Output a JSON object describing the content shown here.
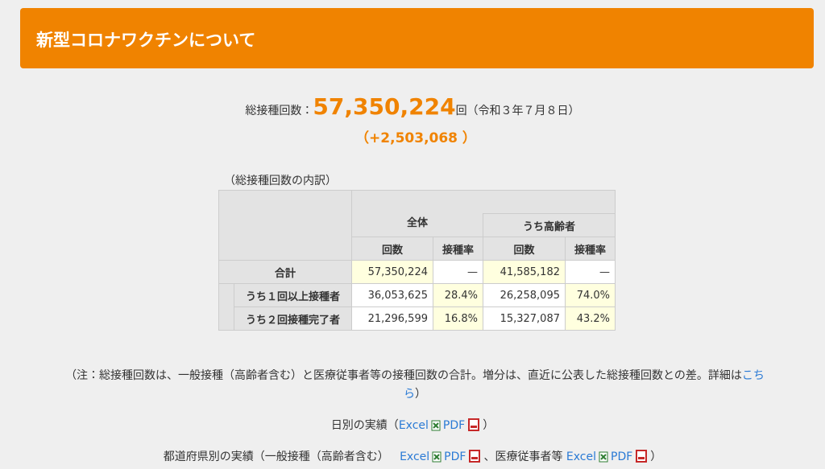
{
  "header": {
    "title": "新型コロナワクチンについて"
  },
  "summary": {
    "label": "総接種回数：",
    "total": "57,350,224",
    "unit_date": "回（令和３年７月８日）",
    "increase": "（+2,503,068 ）"
  },
  "table": {
    "caption": "（総接種回数の内訳）",
    "group_all": "全体",
    "group_elderly": "うち高齢者",
    "col_headers": [
      "回数",
      "接種率",
      "回数",
      "接種率"
    ],
    "rows": [
      {
        "label": "合計",
        "cells": [
          "57,350,224",
          "—",
          "41,585,182",
          "—"
        ]
      },
      {
        "label": "うち１回以上接種者",
        "cells": [
          "36,053,625",
          "28.4%",
          "26,258,095",
          "74.0%"
        ]
      },
      {
        "label": "うち２回接種完了者",
        "cells": [
          "21,296,599",
          "16.8%",
          "15,327,087",
          "43.2%"
        ]
      }
    ]
  },
  "note": {
    "text": "（注：総接種回数は、一般接種（高齢者含む）と医療従事者等の接種回数の合計。増分は、直近に公表した総接種回数との差。詳細は",
    "link": "こちら",
    "close": "）"
  },
  "daily": {
    "label": "日別の実績（",
    "excel": "Excel",
    "pdf": "PDF",
    "close": "）"
  },
  "prefecture": {
    "label": "都道府県別の実績（一般接種（高齢者含む）",
    "excel": "Excel",
    "pdf": "PDF",
    "separator": "、医療従事者等",
    "excel2": "Excel",
    "pdf2": "PDF",
    "close": "）"
  }
}
